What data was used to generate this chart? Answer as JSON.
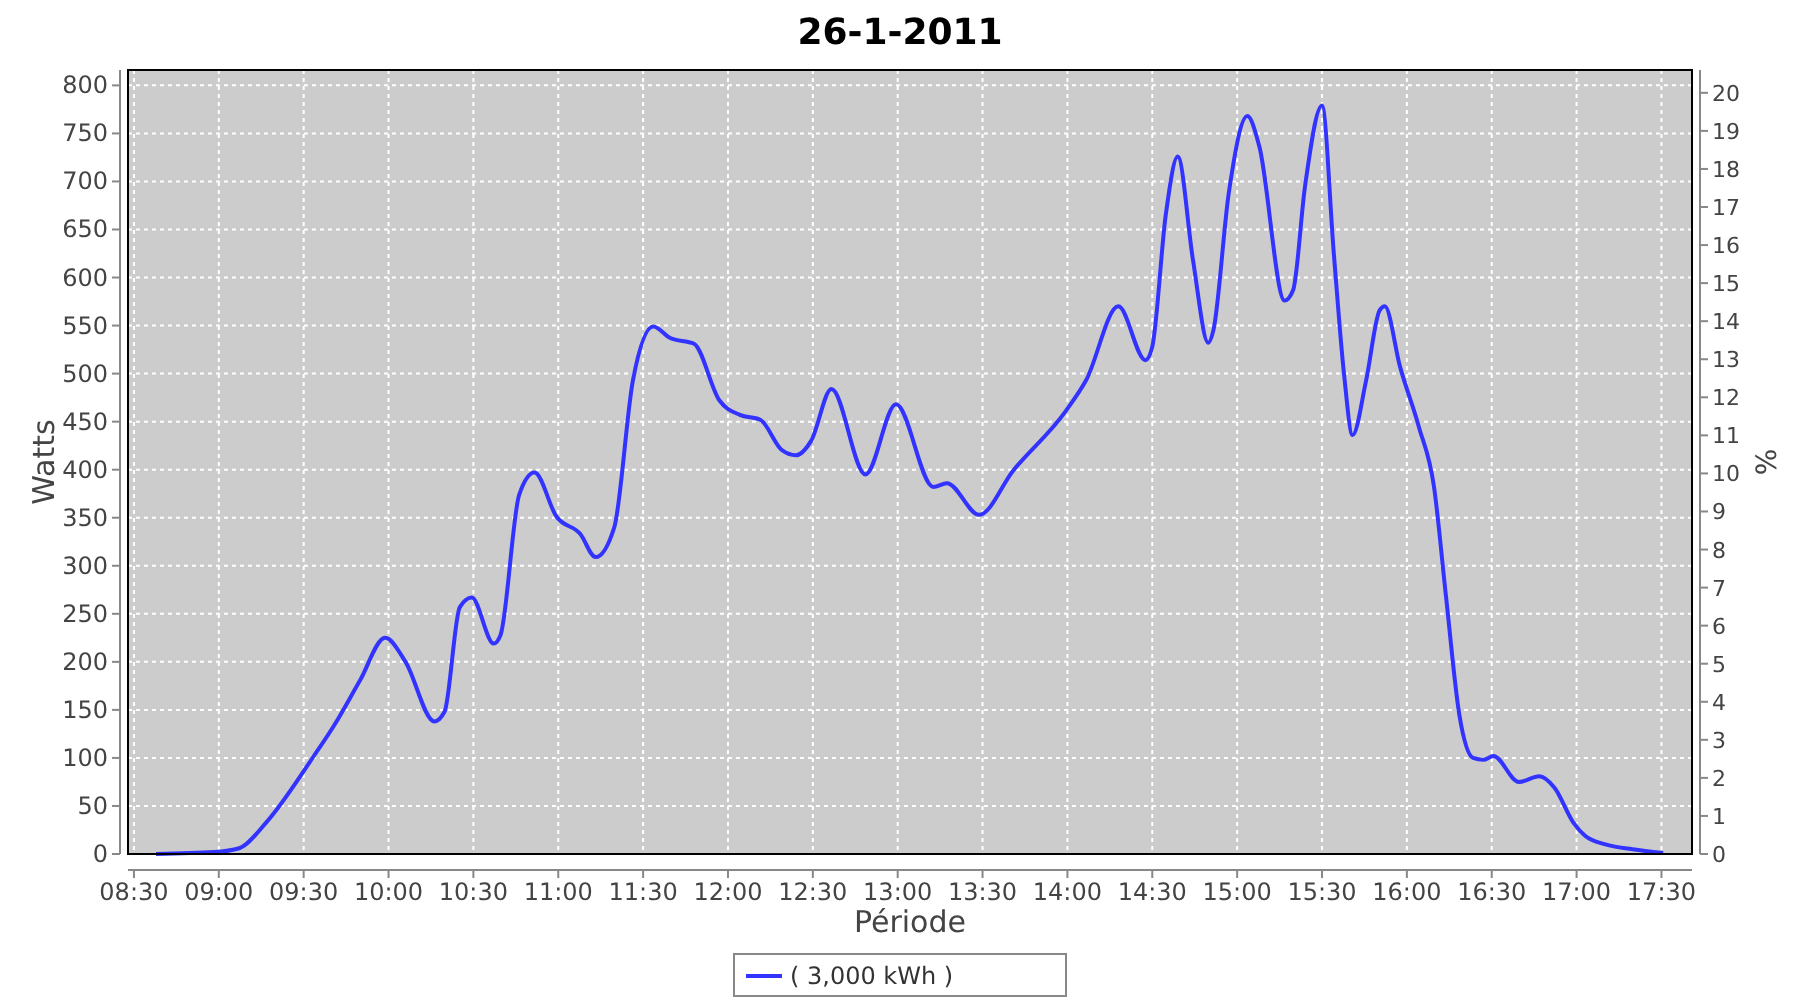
{
  "chart_data": {
    "type": "line",
    "title": "26-1-2011",
    "xlabel": "Période",
    "ylabel": "Watts",
    "y2label": "%",
    "xlim": [
      8.465,
      17.68
    ],
    "xticks": [
      {
        "value": 8.5,
        "label": "08:30"
      },
      {
        "value": 9,
        "label": "09:00"
      },
      {
        "value": 9.5,
        "label": "09:30"
      },
      {
        "value": 10,
        "label": "10:00"
      },
      {
        "value": 10.5,
        "label": "10:30"
      },
      {
        "value": 11,
        "label": "11:00"
      },
      {
        "value": 11.5,
        "label": "11:30"
      },
      {
        "value": 12,
        "label": "12:00"
      },
      {
        "value": 12.5,
        "label": "12:30"
      },
      {
        "value": 13,
        "label": "13:00"
      },
      {
        "value": 13.5,
        "label": "13:30"
      },
      {
        "value": 14,
        "label": "14:00"
      },
      {
        "value": 14.5,
        "label": "14:30"
      },
      {
        "value": 15,
        "label": "15:00"
      },
      {
        "value": 15.5,
        "label": "15:30"
      },
      {
        "value": 16,
        "label": "16:00"
      },
      {
        "value": 16.5,
        "label": "16:30"
      },
      {
        "value": 17,
        "label": "17:00"
      },
      {
        "value": 17.5,
        "label": "17:30"
      }
    ],
    "ylim": [
      0,
      816
    ],
    "yticks": [
      0,
      50,
      100,
      150,
      200,
      250,
      300,
      350,
      400,
      450,
      500,
      550,
      600,
      650,
      700,
      750,
      800
    ],
    "y2lim": [
      0,
      20.6
    ],
    "y2ticks": [
      0,
      1,
      2,
      3,
      4,
      5,
      6,
      7,
      8,
      9,
      10,
      11,
      12,
      13,
      14,
      15,
      16,
      17,
      18,
      19,
      20
    ],
    "grid": true,
    "legend": "bottom",
    "x": [
      8.63,
      8.97,
      9.12,
      9.28,
      9.56,
      9.68,
      9.83,
      9.98,
      10.1,
      10.27,
      10.33,
      10.42,
      10.49,
      10.62,
      10.66,
      10.77,
      10.86,
      10.99,
      11.13,
      11.22,
      11.33,
      11.44,
      11.56,
      11.66,
      11.8,
      11.95,
      12.07,
      12.19,
      12.32,
      12.4,
      12.49,
      12.61,
      12.81,
      12.99,
      13.21,
      13.29,
      13.48,
      13.68,
      13.99,
      14.11,
      14.3,
      14.46,
      14.5,
      14.58,
      14.65,
      14.74,
      14.83,
      14.86,
      14.95,
      15.06,
      15.13,
      15.28,
      15.33,
      15.4,
      15.5,
      15.57,
      15.63,
      15.68,
      15.76,
      15.84,
      15.87,
      15.96,
      16.07,
      16.16,
      16.23,
      16.31,
      16.39,
      16.45,
      16.51,
      16.66,
      16.78,
      16.87,
      16.98,
      17.05,
      17.17,
      17.33,
      17.51
    ],
    "series": [
      {
        "name": "( 3,000 kWh )",
        "color": "#3333ff",
        "values": [
          0,
          2,
          6,
          33,
          102,
          134,
          180,
          225,
          200,
          138,
          148,
          257,
          267,
          219,
          228,
          374,
          397,
          351,
          333,
          309,
          340,
          493,
          549,
          537,
          531,
          472,
          457,
          452,
          420,
          415,
          430,
          484,
          395,
          468,
          382,
          386,
          353,
          399,
          461,
          493,
          570,
          514,
          528,
          666,
          726,
          618,
          532,
          545,
          687,
          768,
          737,
          576,
          587,
          695,
          779,
          624,
          499,
          436,
          493,
          566,
          570,
          507,
          445,
          382,
          269,
          144,
          100,
          98,
          102,
          75,
          81,
          69,
          33,
          19,
          10,
          5,
          1
        ]
      }
    ]
  }
}
